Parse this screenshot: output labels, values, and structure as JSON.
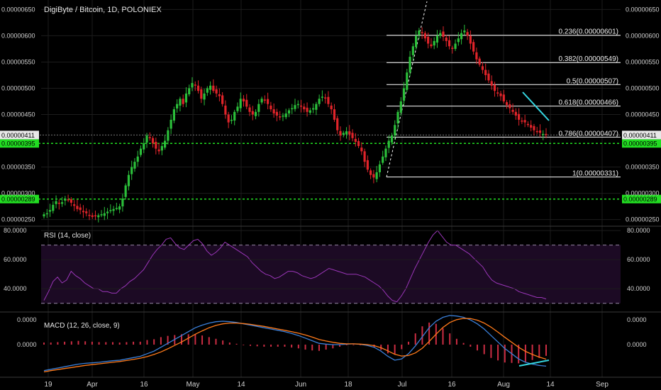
{
  "colors": {
    "background": "#000000",
    "up": "#2bbf3a",
    "down": "#e0242a",
    "grid": "#1c1c1c",
    "axis_text": "#d0d0d0",
    "support": "#22dd22",
    "fib": "#ffffff",
    "trendline": "#35d6e0",
    "rsi": "#9a36b8",
    "rsi_band": "#1c0a24",
    "macd": "#3a7fd8",
    "signal": "#ff7a1a",
    "hist": "#cc2d43"
  },
  "header": {
    "title": "DigiByte / Bitcoin, 1D, POLONIEX"
  },
  "price_pane": {
    "ticks": [
      "0.00000650",
      "0.00000600",
      "0.00000550",
      "0.00000500",
      "0.00000450",
      "0.00000350",
      "0.00000300",
      "0.00000250"
    ],
    "tick_values": [
      650,
      600,
      550,
      500,
      450,
      350,
      300,
      250
    ],
    "current_price": {
      "label": "0.00000411",
      "value": 411
    },
    "support_levels": [
      {
        "label": "0.00000395",
        "value": 395
      },
      {
        "label": "0.00000289",
        "value": 289
      }
    ],
    "fib_levels": [
      {
        "label": "0.236(0.00000601)",
        "value": 601
      },
      {
        "label": "0.382(0.00000549)",
        "value": 549
      },
      {
        "label": "0.5(0.00000507)",
        "value": 507
      },
      {
        "label": "0.618(0.00000466)",
        "value": 466
      },
      {
        "label": "0.786(0.00000407)",
        "value": 407
      },
      {
        "label": "1(0.00000331)",
        "value": 331
      }
    ]
  },
  "rsi_pane": {
    "title": "RSI (14, close)",
    "ticks": [
      "80.0000",
      "60.0000",
      "40.0000"
    ],
    "tick_values": [
      80,
      60,
      40
    ],
    "upper_band": 70,
    "lower_band": 30
  },
  "macd_pane": {
    "title": "MACD (12, 26, close, 9)",
    "ticks": [
      "0.0000",
      "0.0000"
    ]
  },
  "x_axis": {
    "labels": [
      "19",
      "Apr",
      "16",
      "May",
      "14",
      "Jun",
      "18",
      "Jul",
      "16",
      "Aug",
      "14",
      "Sep"
    ]
  },
  "chart_data": {
    "type": "candlestick",
    "title": "DigiByte / Bitcoin, 1D, POLONIEX",
    "y_unit_scale": "values ×1e-8 BTC",
    "ylim": [
      240,
      660
    ],
    "closes": [
      260,
      262,
      268,
      278,
      285,
      280,
      283,
      290,
      287,
      282,
      276,
      270,
      268,
      264,
      262,
      258,
      255,
      256,
      258,
      260,
      262,
      265,
      268,
      270,
      272,
      275,
      290,
      315,
      335,
      350,
      360,
      370,
      385,
      395,
      410,
      405,
      395,
      385,
      380,
      390,
      400,
      420,
      440,
      460,
      470,
      480,
      470,
      490,
      500,
      510,
      505,
      495,
      480,
      490,
      500,
      505,
      495,
      490,
      485,
      470,
      450,
      435,
      440,
      455,
      465,
      480,
      475,
      465,
      455,
      450,
      455,
      470,
      480,
      478,
      470,
      460,
      452,
      448,
      445,
      448,
      452,
      458,
      462,
      468,
      470,
      465,
      460,
      455,
      458,
      462,
      470,
      480,
      484,
      482,
      470,
      460,
      440,
      420,
      410,
      415,
      418,
      412,
      405,
      398,
      390,
      380,
      360,
      345,
      335,
      330,
      340,
      355,
      370,
      385,
      400,
      410,
      430,
      455,
      475,
      500,
      530,
      560,
      580,
      600,
      610,
      605,
      595,
      585,
      580,
      590,
      600,
      605,
      598,
      590,
      580,
      575,
      585,
      595,
      605,
      610,
      600,
      585,
      570,
      555,
      545,
      535,
      525,
      515,
      505,
      495,
      490,
      485,
      475,
      468,
      462,
      455,
      448,
      440,
      438,
      435,
      430,
      425,
      420,
      418,
      415,
      413,
      411
    ],
    "current_price": 411,
    "support_levels": [
      395,
      289
    ],
    "fibonacci_levels": [
      {
        "ratio": 0.236,
        "price": 601
      },
      {
        "ratio": 0.382,
        "price": 549
      },
      {
        "ratio": 0.5,
        "price": 507
      },
      {
        "ratio": 0.618,
        "price": 466
      },
      {
        "ratio": 0.786,
        "price": 407
      },
      {
        "ratio": 1,
        "price": 331
      }
    ],
    "rsi": {
      "period": 14,
      "ylim": [
        25,
        82
      ],
      "bands": [
        70,
        30
      ],
      "values": [
        32,
        38,
        45,
        48,
        44,
        46,
        52,
        49,
        47,
        44,
        42,
        40,
        40,
        38,
        38,
        37,
        37,
        40,
        42,
        45,
        47,
        50,
        53,
        58,
        63,
        67,
        70,
        74,
        75,
        71,
        68,
        67,
        70,
        73,
        74,
        71,
        66,
        63,
        65,
        68,
        72,
        70,
        68,
        66,
        64,
        62,
        58,
        55,
        52,
        50,
        49,
        47,
        48,
        50,
        52,
        52,
        51,
        49,
        48,
        47,
        48,
        50,
        52,
        54,
        53,
        52,
        51,
        50,
        50,
        50,
        49,
        48,
        46,
        44,
        42,
        39,
        35,
        32,
        31,
        35,
        40,
        47,
        54,
        60,
        66,
        72,
        77,
        80,
        76,
        72,
        70,
        70,
        68,
        66,
        64,
        61,
        58,
        55,
        50,
        46,
        44,
        43,
        42,
        41,
        40,
        38,
        37,
        36,
        35,
        34,
        34,
        33
      ]
    },
    "macd": {
      "params": [
        12,
        26,
        9
      ],
      "ylim": [
        -12,
        12
      ],
      "macd": [
        -10,
        -9.5,
        -9,
        -8.5,
        -8,
        -7.5,
        -7.2,
        -7,
        -6.8,
        -6.5,
        -6.2,
        -6,
        -5.5,
        -5,
        -4.5,
        -3.5,
        -2.5,
        -1,
        0.5,
        2,
        3.5,
        5,
        6.5,
        7.5,
        8.3,
        8.8,
        9,
        8.8,
        8.5,
        8,
        7.5,
        7,
        6.5,
        6,
        5.5,
        5,
        4.3,
        3.5,
        2.5,
        1.5,
        0.5,
        0.2,
        0,
        0,
        0.2,
        0.3,
        0.1,
        -0.3,
        -1,
        -2.5,
        -4.5,
        -6,
        -5.5,
        -3.5,
        -0.5,
        3,
        6.5,
        9,
        10.5,
        11.2,
        11,
        10.5,
        9.5,
        8,
        6,
        3.5,
        1,
        -1.5,
        -3.5,
        -5.5,
        -6.8,
        -7.5,
        -8,
        -8.3
      ],
      "signal": [
        -10.5,
        -10,
        -9.6,
        -9.2,
        -8.8,
        -8.4,
        -8,
        -7.7,
        -7.4,
        -7.1,
        -6.8,
        -6.5,
        -6.1,
        -5.7,
        -5.2,
        -4.6,
        -3.8,
        -2.8,
        -1.6,
        -0.3,
        1,
        2.5,
        4,
        5.3,
        6.5,
        7.4,
        8,
        8.3,
        8.3,
        8.1,
        7.8,
        7.4,
        7,
        6.5,
        6,
        5.5,
        5,
        4.4,
        3.7,
        2.9,
        2,
        1.4,
        0.9,
        0.5,
        0.3,
        0.3,
        0.2,
        0,
        -0.4,
        -1.2,
        -2.4,
        -3.7,
        -4.4,
        -4.2,
        -3.2,
        -1.4,
        1.2,
        4,
        6.6,
        8.5,
        9.6,
        10.1,
        10,
        9.4,
        8.3,
        6.7,
        4.8,
        2.8,
        0.9,
        -1,
        -2.6,
        -3.8,
        -4.8,
        -5.6
      ],
      "trendline": "rising"
    }
  }
}
